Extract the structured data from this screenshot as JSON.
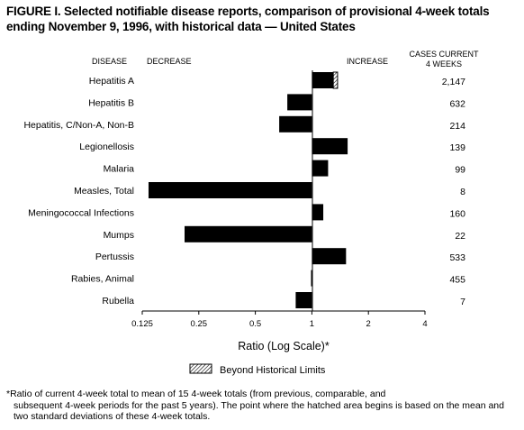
{
  "title": "FIGURE I. Selected notifiable disease reports, comparison of provisional 4-week totals ending November 9, 1996, with historical data — United States",
  "headers": {
    "disease": "DISEASE",
    "decrease": "DECREASE",
    "increase": "INCREASE",
    "cases_line1": "CASES CURRENT",
    "cases_line2": "4 WEEKS"
  },
  "legend_label": "Beyond Historical Limits",
  "footnote_line1": "*Ratio of current 4-week total to mean of 15 4-week totals (from previous, comparable, and",
  "footnote_rest": "subsequent 4-week periods for the past 5 years). The point where the hatched area begins is based on the mean and two standard deviations of these 4-week totals.",
  "chart_data": {
    "type": "bar",
    "orientation": "horizontal",
    "log_scale": true,
    "baseline": 1,
    "xlim": [
      0.125,
      4
    ],
    "xticks": [
      0.125,
      0.25,
      0.5,
      1,
      2,
      4
    ],
    "xtick_labels": [
      "0.125",
      "0.25",
      "0.5",
      "1",
      "2",
      "4"
    ],
    "xlabel": "Ratio (Log Scale)*",
    "categories": [
      "Hepatitis A",
      "Hepatitis B",
      "Hepatitis, C/Non-A, Non-B",
      "Legionellosis",
      "Malaria",
      "Measles, Total",
      "Meningococcal Infections",
      "Mumps",
      "Pertussis",
      "Rabies, Animal",
      "Rubella"
    ],
    "ratios": [
      1.37,
      0.74,
      0.67,
      1.55,
      1.22,
      0.135,
      1.15,
      0.21,
      1.52,
      0.99,
      0.82
    ],
    "hatched_from": [
      1.3,
      null,
      null,
      null,
      null,
      null,
      null,
      null,
      null,
      null,
      null
    ],
    "cases_current_4_weeks": [
      "2,147",
      "632",
      "214",
      "139",
      "99",
      "8",
      "160",
      "22",
      "533",
      "455",
      "7"
    ],
    "colors": {
      "bar": "#000000",
      "axis": "#000000"
    }
  }
}
